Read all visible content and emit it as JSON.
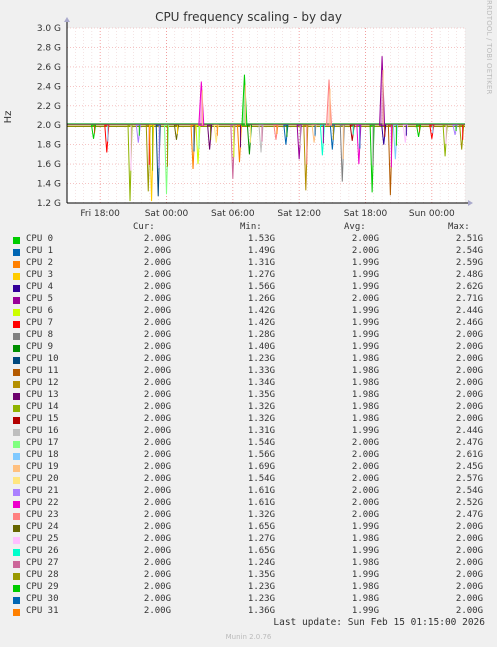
{
  "title": "CPU frequency scaling - by day",
  "side_text": "RRDTOOL / TOBI OETIKER",
  "colors": [
    "#00cc00",
    "#0066b3",
    "#ff8000",
    "#ffcc00",
    "#330099",
    "#990099",
    "#ccff00",
    "#ff0000",
    "#808080",
    "#008f00",
    "#00487d",
    "#b35a00",
    "#b38f00",
    "#6b006b",
    "#8fb300",
    "#b30000",
    "#bebebe",
    "#80ff80",
    "#80c9ff",
    "#ffc080",
    "#ffe680",
    "#aa80ff",
    "#ee00cc",
    "#ff8080",
    "#666600",
    "#ffbfff",
    "#00ffcc",
    "#cc6699",
    "#999900",
    "#00cc00",
    "#0066b3",
    "#ff8000"
  ],
  "chart_data": {
    "type": "line",
    "title": "CPU frequency scaling - by day",
    "ylabel": "Hz",
    "ylim": [
      1.2,
      3.0
    ],
    "yticks": [
      "1.2 G",
      "1.4 G",
      "1.6 G",
      "1.8 G",
      "2.0 G",
      "2.2 G",
      "2.4 G",
      "2.6 G",
      "2.8 G",
      "3.0 G"
    ],
    "xticks": [
      "Fri 18:00",
      "Sat 00:00",
      "Sat 06:00",
      "Sat 12:00",
      "Sat 18:00",
      "Sun 00:00"
    ],
    "baseline": 2.0,
    "dips": [
      {
        "t": 0.08,
        "v": 1.86
      },
      {
        "t": 0.12,
        "v": 1.72
      },
      {
        "t": 0.19,
        "v": 1.22
      },
      {
        "t": 0.215,
        "v": 1.82
      },
      {
        "t": 0.245,
        "v": 1.32
      },
      {
        "t": 0.255,
        "v": 1.22
      },
      {
        "t": 0.275,
        "v": 1.27
      },
      {
        "t": 0.3,
        "v": 1.29
      },
      {
        "t": 0.33,
        "v": 1.85
      },
      {
        "t": 0.38,
        "v": 1.55
      },
      {
        "t": 0.395,
        "v": 1.6
      },
      {
        "t": 0.43,
        "v": 1.75
      },
      {
        "t": 0.45,
        "v": 1.82
      },
      {
        "t": 0.5,
        "v": 1.45
      },
      {
        "t": 0.52,
        "v": 1.62
      },
      {
        "t": 0.55,
        "v": 1.7
      },
      {
        "t": 0.585,
        "v": 1.72
      },
      {
        "t": 0.63,
        "v": 1.85
      },
      {
        "t": 0.66,
        "v": 1.8
      },
      {
        "t": 0.7,
        "v": 1.65
      },
      {
        "t": 0.72,
        "v": 1.33
      },
      {
        "t": 0.745,
        "v": 1.82
      },
      {
        "t": 0.77,
        "v": 1.69
      },
      {
        "t": 0.8,
        "v": 1.75
      },
      {
        "t": 0.83,
        "v": 1.42
      },
      {
        "t": 0.86,
        "v": 1.84
      },
      {
        "t": 0.88,
        "v": 1.6
      },
      {
        "t": 0.92,
        "v": 1.31
      },
      {
        "t": 0.955,
        "v": 1.8
      },
      {
        "t": 0.975,
        "v": 1.28
      },
      {
        "t": 0.99,
        "v": 1.65
      },
      {
        "t": 1.02,
        "v": 1.82
      },
      {
        "t": 1.06,
        "v": 1.88
      },
      {
        "t": 1.1,
        "v": 1.86
      },
      {
        "t": 1.14,
        "v": 1.68
      },
      {
        "t": 1.17,
        "v": 1.9
      },
      {
        "t": 1.19,
        "v": 1.75
      }
    ],
    "spikes": [
      {
        "t": 0.405,
        "v": 2.45
      },
      {
        "t": 0.535,
        "v": 2.52
      },
      {
        "t": 0.79,
        "v": 2.47
      },
      {
        "t": 0.95,
        "v": 2.71
      }
    ],
    "series": [
      {
        "name": "CPU 0",
        "cur": "2.00G",
        "min": "1.53G",
        "avg": "2.00G",
        "max": "2.51G"
      },
      {
        "name": "CPU 1",
        "cur": "2.00G",
        "min": "1.49G",
        "avg": "2.00G",
        "max": "2.54G"
      },
      {
        "name": "CPU 2",
        "cur": "2.00G",
        "min": "1.31G",
        "avg": "1.99G",
        "max": "2.59G"
      },
      {
        "name": "CPU 3",
        "cur": "2.00G",
        "min": "1.27G",
        "avg": "1.99G",
        "max": "2.48G"
      },
      {
        "name": "CPU 4",
        "cur": "2.00G",
        "min": "1.56G",
        "avg": "1.99G",
        "max": "2.62G"
      },
      {
        "name": "CPU 5",
        "cur": "2.00G",
        "min": "1.26G",
        "avg": "2.00G",
        "max": "2.71G"
      },
      {
        "name": "CPU 6",
        "cur": "2.00G",
        "min": "1.42G",
        "avg": "1.99G",
        "max": "2.44G"
      },
      {
        "name": "CPU 7",
        "cur": "2.00G",
        "min": "1.42G",
        "avg": "1.99G",
        "max": "2.46G"
      },
      {
        "name": "CPU 8",
        "cur": "2.00G",
        "min": "1.28G",
        "avg": "1.99G",
        "max": "2.00G"
      },
      {
        "name": "CPU 9",
        "cur": "2.00G",
        "min": "1.40G",
        "avg": "1.99G",
        "max": "2.00G"
      },
      {
        "name": "CPU 10",
        "cur": "2.00G",
        "min": "1.23G",
        "avg": "1.98G",
        "max": "2.00G"
      },
      {
        "name": "CPU 11",
        "cur": "2.00G",
        "min": "1.33G",
        "avg": "1.98G",
        "max": "2.00G"
      },
      {
        "name": "CPU 12",
        "cur": "2.00G",
        "min": "1.34G",
        "avg": "1.98G",
        "max": "2.00G"
      },
      {
        "name": "CPU 13",
        "cur": "2.00G",
        "min": "1.35G",
        "avg": "1.98G",
        "max": "2.00G"
      },
      {
        "name": "CPU 14",
        "cur": "2.00G",
        "min": "1.32G",
        "avg": "1.98G",
        "max": "2.00G"
      },
      {
        "name": "CPU 15",
        "cur": "2.00G",
        "min": "1.32G",
        "avg": "1.98G",
        "max": "2.00G"
      },
      {
        "name": "CPU 16",
        "cur": "2.00G",
        "min": "1.31G",
        "avg": "1.99G",
        "max": "2.44G"
      },
      {
        "name": "CPU 17",
        "cur": "2.00G",
        "min": "1.54G",
        "avg": "2.00G",
        "max": "2.47G"
      },
      {
        "name": "CPU 18",
        "cur": "2.00G",
        "min": "1.56G",
        "avg": "2.00G",
        "max": "2.61G"
      },
      {
        "name": "CPU 19",
        "cur": "2.00G",
        "min": "1.69G",
        "avg": "2.00G",
        "max": "2.45G"
      },
      {
        "name": "CPU 20",
        "cur": "2.00G",
        "min": "1.54G",
        "avg": "2.00G",
        "max": "2.57G"
      },
      {
        "name": "CPU 21",
        "cur": "2.00G",
        "min": "1.61G",
        "avg": "2.00G",
        "max": "2.54G"
      },
      {
        "name": "CPU 22",
        "cur": "2.00G",
        "min": "1.61G",
        "avg": "2.00G",
        "max": "2.52G"
      },
      {
        "name": "CPU 23",
        "cur": "2.00G",
        "min": "1.32G",
        "avg": "2.00G",
        "max": "2.47G"
      },
      {
        "name": "CPU 24",
        "cur": "2.00G",
        "min": "1.65G",
        "avg": "1.99G",
        "max": "2.00G"
      },
      {
        "name": "CPU 25",
        "cur": "2.00G",
        "min": "1.27G",
        "avg": "1.98G",
        "max": "2.00G"
      },
      {
        "name": "CPU 26",
        "cur": "2.00G",
        "min": "1.65G",
        "avg": "1.99G",
        "max": "2.00G"
      },
      {
        "name": "CPU 27",
        "cur": "2.00G",
        "min": "1.24G",
        "avg": "1.98G",
        "max": "2.00G"
      },
      {
        "name": "CPU 28",
        "cur": "2.00G",
        "min": "1.35G",
        "avg": "1.99G",
        "max": "2.00G"
      },
      {
        "name": "CPU 29",
        "cur": "2.00G",
        "min": "1.23G",
        "avg": "1.98G",
        "max": "2.00G"
      },
      {
        "name": "CPU 30",
        "cur": "2.00G",
        "min": "1.23G",
        "avg": "1.98G",
        "max": "2.00G"
      },
      {
        "name": "CPU 31",
        "cur": "2.00G",
        "min": "1.36G",
        "avg": "1.99G",
        "max": "2.00G"
      }
    ]
  },
  "headers": {
    "cur": "Cur:",
    "min": "Min:",
    "avg": "Avg:",
    "max": "Max:"
  },
  "footer": "Last update: Sun Feb 15 01:15:00 2026",
  "munin": "Munin 2.0.76"
}
